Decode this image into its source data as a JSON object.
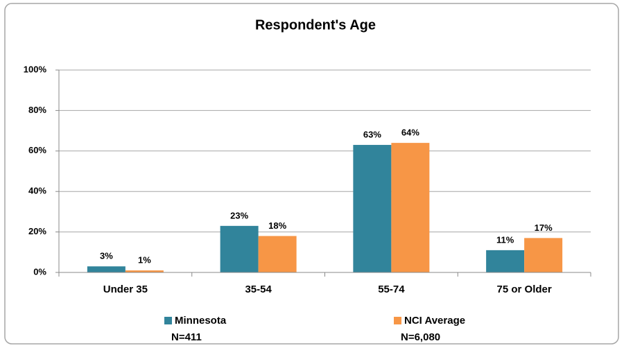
{
  "chart_data": {
    "type": "bar",
    "title": "Respondent's Age",
    "categories": [
      "Under 35",
      "35-54",
      "55-74",
      "75 or Older"
    ],
    "series": [
      {
        "name": "Minnesota",
        "n_label": "N=411",
        "color": "#31849b",
        "values": [
          3,
          23,
          63,
          11
        ],
        "value_labels": [
          "3%",
          "23%",
          "63%",
          "11%"
        ]
      },
      {
        "name": "NCI Average",
        "n_label": "N=6,080",
        "color": "#f79646",
        "values": [
          1,
          18,
          64,
          17
        ],
        "value_labels": [
          "1%",
          "18%",
          "64%",
          "17%"
        ]
      }
    ],
    "ylim": [
      0,
      100
    ],
    "yticks": [
      {
        "value": 0,
        "label": "0%"
      },
      {
        "value": 20,
        "label": "20%"
      },
      {
        "value": 40,
        "label": "40%"
      },
      {
        "value": 60,
        "label": "60%"
      },
      {
        "value": 80,
        "label": "80%"
      },
      {
        "value": 100,
        "label": "100%"
      }
    ],
    "grid": true,
    "legend": "bottom"
  }
}
